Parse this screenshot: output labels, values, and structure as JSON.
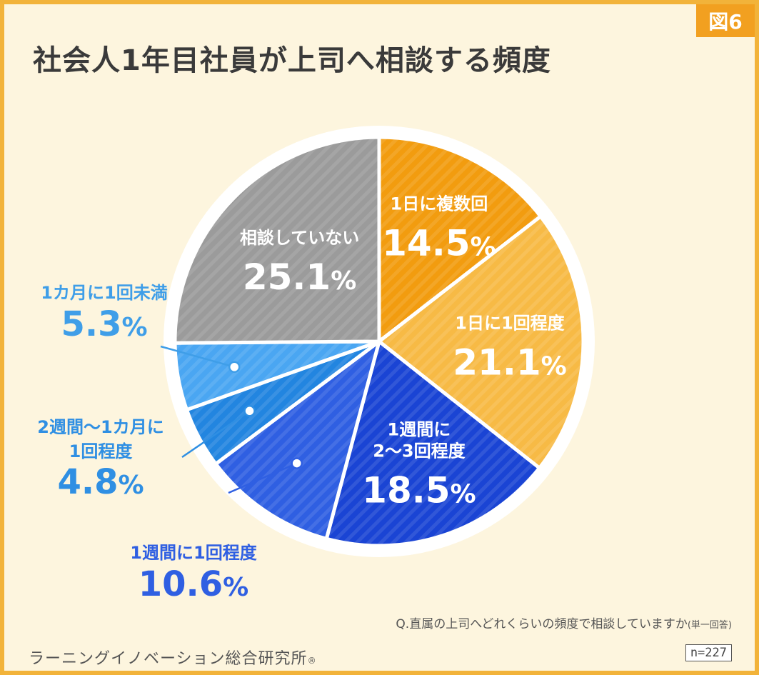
{
  "figure_badge": "図6",
  "title": "社会人1年目社員が上司へ相談する頻度",
  "chart_data": {
    "type": "pie",
    "title": "社会人1年目社員が上司へ相談する頻度",
    "unit": "%",
    "slices": [
      {
        "label": "1日に複数回",
        "label_lines": [
          "1日に複数回"
        ],
        "value": 14.5,
        "color": "#f29c0f",
        "label_color": "#ffffff",
        "placement": "inside"
      },
      {
        "label": "1日に1回程度",
        "label_lines": [
          "1日に1回程度"
        ],
        "value": 21.1,
        "color": "#f7ba45",
        "label_color": "#ffffff",
        "placement": "inside"
      },
      {
        "label": "1週間に2〜3回程度",
        "label_lines": [
          "1週間に",
          "2〜3回程度"
        ],
        "value": 18.5,
        "color": "#1a44d4",
        "label_color": "#ffffff",
        "placement": "inside"
      },
      {
        "label": "1週間に1回程度",
        "label_lines": [
          "1週間に1回程度"
        ],
        "value": 10.6,
        "color": "#2f5fe2",
        "label_color": "#2f5fe2",
        "placement": "outside"
      },
      {
        "label": "2週間〜1カ月に1回程度",
        "label_lines": [
          "2週間〜1カ月に",
          "1回程度"
        ],
        "value": 4.8,
        "color": "#2285e0",
        "label_color": "#2f8fe3",
        "placement": "outside"
      },
      {
        "label": "1カ月に1回未満",
        "label_lines": [
          "1カ月に1回未満"
        ],
        "value": 5.3,
        "color": "#4aa6f2",
        "label_color": "#3f9ee8",
        "placement": "outside"
      },
      {
        "label": "相談していない",
        "label_lines": [
          "相談していない"
        ],
        "value": 25.1,
        "color": "#9b9b9b",
        "label_color": "#ffffff",
        "placement": "inside"
      }
    ]
  },
  "question": "Q.直属の上司へどれくらいの頻度で相談していますか",
  "question_note": "(単一回答)",
  "organization": "ラーニングイノベーション総合研究所",
  "registered_mark": "®",
  "sample_size": "n=227"
}
